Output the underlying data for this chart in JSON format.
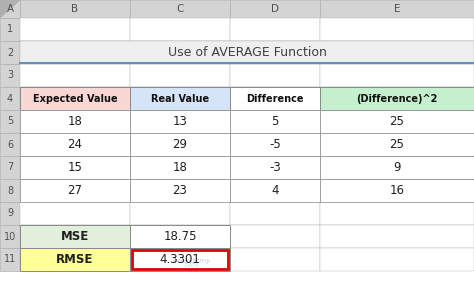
{
  "title": "Use of AVERAGE Function",
  "col_headers": [
    "Expected Value",
    "Real Value",
    "Difference",
    "(Difference)^2"
  ],
  "col_header_colors": [
    "#f8d7d4",
    "#d6e4f7",
    "#ffffff",
    "#c6efce"
  ],
  "data_rows": [
    [
      18,
      13,
      5,
      25
    ],
    [
      24,
      29,
      -5,
      25
    ],
    [
      15,
      18,
      -3,
      9
    ],
    [
      27,
      23,
      4,
      16
    ]
  ],
  "summary_labels": [
    "MSE",
    "RMSE"
  ],
  "summary_values": [
    "18.75",
    "4.3301"
  ],
  "summary_label_colors": [
    "#e2efda",
    "#ffff99"
  ],
  "bg_color": "#ffffff",
  "header_bg": "#d4d4d4",
  "grid_color": "#b0b0b0",
  "title_color": "#404040",
  "watermark_color": "#b8c8d8",
  "rmse_box_color": "#dd0000",
  "title_underline_color": "#6090c0"
}
